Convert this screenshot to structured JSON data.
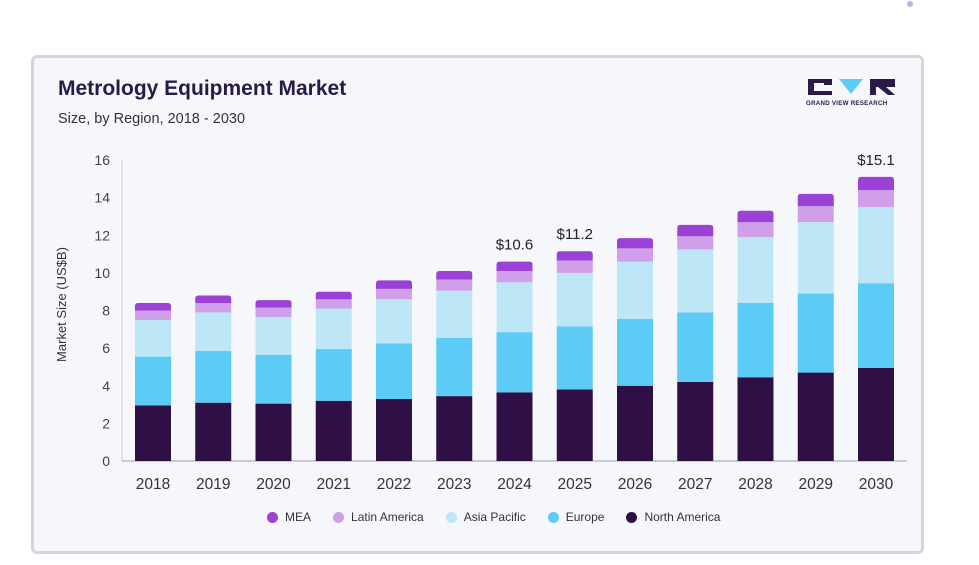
{
  "header": {
    "title": "Metrology Equipment Market",
    "subtitle": "Size, by Region, 2018 - 2030"
  },
  "logo": {
    "text": "GRAND VIEW RESEARCH"
  },
  "chart_data": {
    "type": "bar",
    "stacked": true,
    "categories": [
      "2018",
      "2019",
      "2020",
      "2021",
      "2022",
      "2023",
      "2024",
      "2025",
      "2026",
      "2027",
      "2028",
      "2029",
      "2030"
    ],
    "ylabel": "Market Size (US$B)",
    "xlabel": "",
    "ylim": [
      0,
      16
    ],
    "yticks": [
      0,
      2,
      4,
      6,
      8,
      10,
      12,
      14,
      16
    ],
    "grid": false,
    "legend_position": "bottom",
    "series": [
      {
        "name": "North America",
        "color": "#2e0f46",
        "values": [
          2.95,
          3.1,
          3.05,
          3.2,
          3.3,
          3.45,
          3.65,
          3.8,
          4.0,
          4.2,
          4.45,
          4.7,
          4.95
        ]
      },
      {
        "name": "Europe",
        "color": "#5ccbf5",
        "values": [
          2.6,
          2.75,
          2.6,
          2.75,
          2.95,
          3.1,
          3.2,
          3.35,
          3.55,
          3.7,
          3.95,
          4.2,
          4.5
        ]
      },
      {
        "name": "Asia Pacific",
        "color": "#bde7f7",
        "values": [
          1.95,
          2.05,
          2.0,
          2.15,
          2.35,
          2.5,
          2.65,
          2.85,
          3.05,
          3.35,
          3.5,
          3.8,
          4.05
        ]
      },
      {
        "name": "Latin America",
        "color": "#cf9fea",
        "values": [
          0.5,
          0.5,
          0.5,
          0.5,
          0.55,
          0.6,
          0.6,
          0.65,
          0.7,
          0.7,
          0.8,
          0.85,
          0.9
        ]
      },
      {
        "name": "MEA",
        "color": "#9b41d6",
        "values": [
          0.4,
          0.4,
          0.4,
          0.4,
          0.45,
          0.45,
          0.5,
          0.5,
          0.55,
          0.6,
          0.6,
          0.65,
          0.7
        ]
      }
    ],
    "legend_order": [
      "MEA",
      "Latin America",
      "Asia Pacific",
      "Europe",
      "North America"
    ],
    "annotations": [
      {
        "category": "2024",
        "text": "$10.6"
      },
      {
        "category": "2025",
        "text": "$11.2"
      },
      {
        "category": "2030",
        "text": "$15.1"
      }
    ]
  }
}
